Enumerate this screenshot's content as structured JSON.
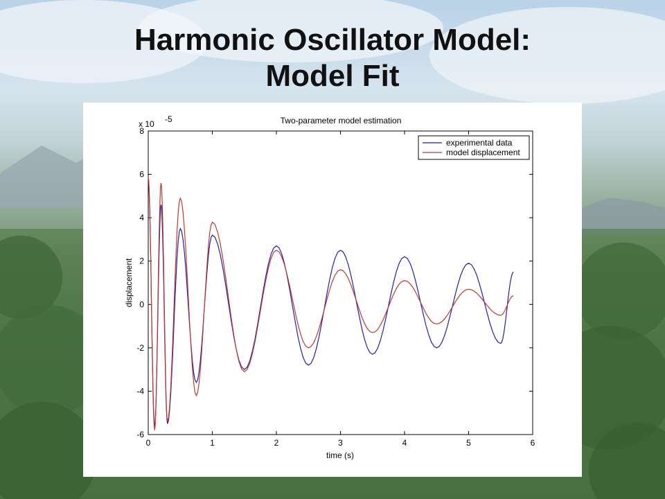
{
  "slide": {
    "title_line1": "Harmonic Oscillator Model:",
    "title_line2": "Model Fit"
  },
  "colors": {
    "experimental": "#1f1fb0",
    "model": "#c0392b",
    "title": "#111111"
  },
  "chart_data": {
    "type": "line",
    "title": "Two-parameter model estimation",
    "xlabel": "time (s)",
    "ylabel": "displacement",
    "y_exponent_label": "x 10",
    "y_exponent_power": "-5",
    "xlim": [
      0,
      6
    ],
    "ylim": [
      -6,
      8
    ],
    "xticks": [
      "0",
      "1",
      "2",
      "3",
      "4",
      "5",
      "6"
    ],
    "yticks": [
      "-6",
      "-4",
      "-2",
      "0",
      "2",
      "4",
      "6",
      "8"
    ],
    "grid": false,
    "legend_position": "top-right",
    "series": [
      {
        "name": "experimental data",
        "color": "#1f1fb0",
        "x": [
          0.0,
          0.1,
          0.2,
          0.3,
          0.5,
          0.75,
          1.0,
          1.5,
          2.0,
          2.5,
          3.0,
          3.5,
          4.0,
          4.5,
          5.0,
          5.5,
          5.7
        ],
        "y": [
          5.8,
          -5.6,
          4.6,
          -5.5,
          3.5,
          -3.6,
          3.2,
          -3.0,
          2.7,
          -2.8,
          2.5,
          -2.3,
          2.2,
          -2.0,
          1.9,
          -1.8,
          1.5
        ]
      },
      {
        "name": "model displacement",
        "color": "#c0392b",
        "x": [
          0.0,
          0.1,
          0.2,
          0.3,
          0.5,
          0.75,
          1.0,
          1.5,
          2.0,
          2.5,
          3.0,
          3.5,
          4.0,
          4.5,
          5.0,
          5.5,
          5.7
        ],
        "y": [
          5.9,
          -5.8,
          5.6,
          -5.4,
          4.9,
          -4.2,
          3.8,
          -3.1,
          2.5,
          -2.0,
          1.6,
          -1.3,
          1.1,
          -0.9,
          0.7,
          -0.5,
          0.4
        ]
      }
    ]
  }
}
